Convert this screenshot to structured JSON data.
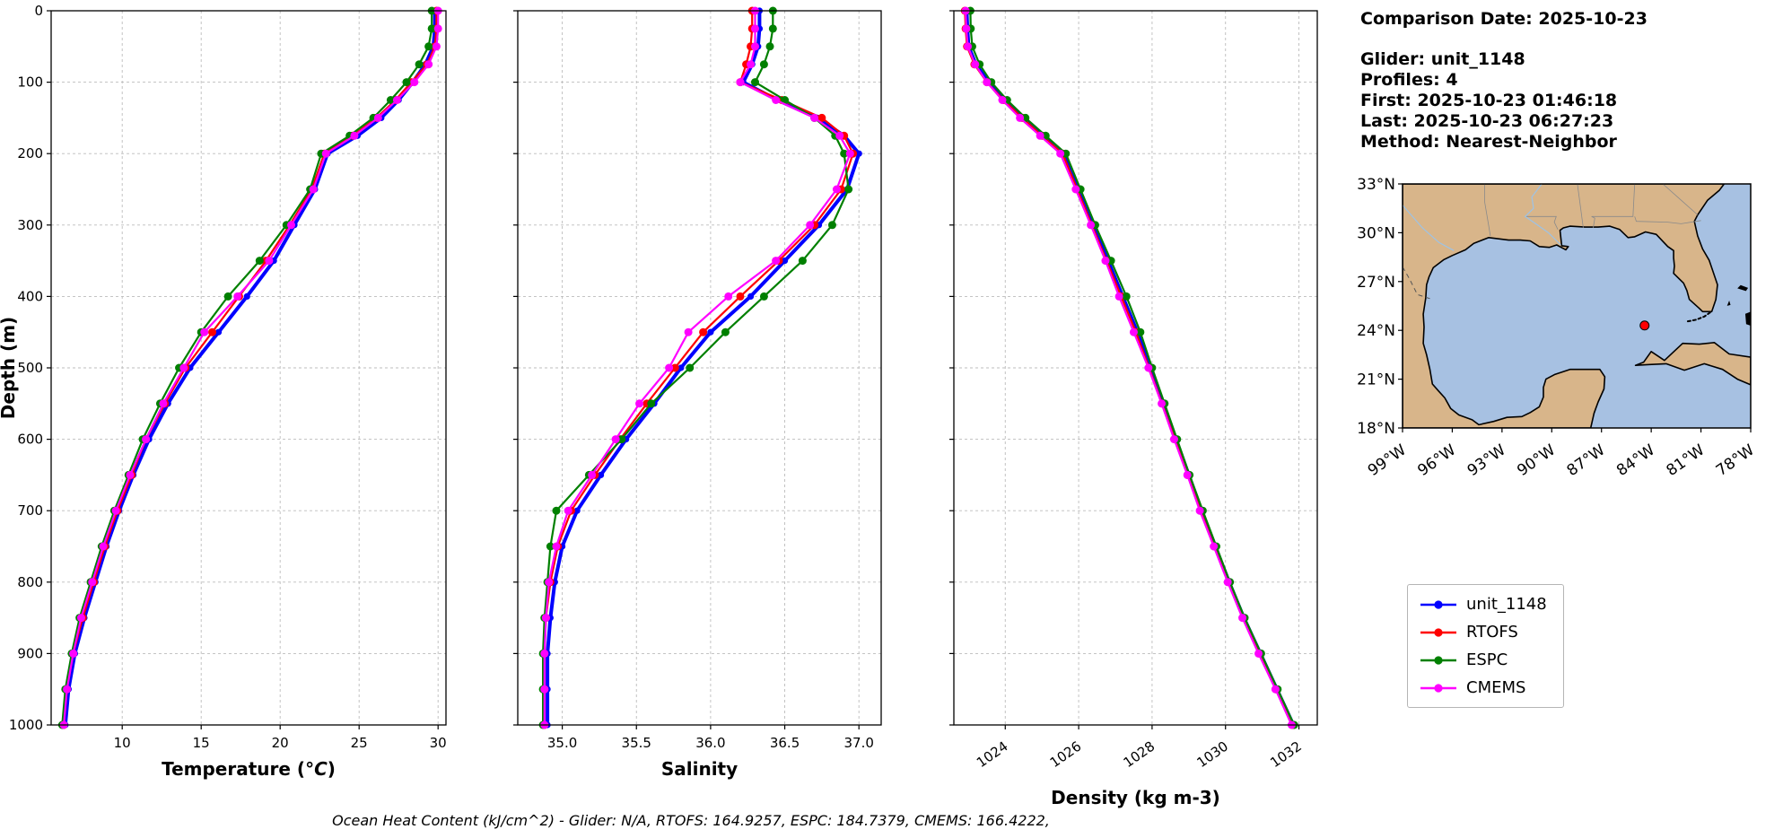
{
  "info_panel": {
    "comparison_date": "Comparison Date: 2025-10-23",
    "glider": "Glider: unit_1148",
    "profiles": "Profiles: 4",
    "first": "First: 2025-10-23 01:46:18",
    "last": "Last: 2025-10-23 06:27:23",
    "method": "Method: Nearest-Neighbor"
  },
  "caption": "Ocean Heat Content (kJ/cm^2) - Glider: N/A,  RTOFS: 164.9257,  ESPC: 184.7379,  CMEMS: 166.4222,",
  "ocean_heat_content": {
    "units": "kJ/cm^2",
    "glider": "N/A",
    "rtofs": 164.9257,
    "espc": 184.7379,
    "cmems": 166.4222
  },
  "legend": {
    "entries": [
      {
        "label": "unit_1148",
        "color": "#0000ff"
      },
      {
        "label": "RTOFS",
        "color": "#ff0000"
      },
      {
        "label": "ESPC",
        "color": "#008000"
      },
      {
        "label": "CMEMS",
        "color": "#ff00ff"
      }
    ]
  },
  "map": {
    "lon_range": [
      -99,
      -78
    ],
    "lat_range": [
      18,
      33
    ],
    "lat_tick_values": [
      33,
      30,
      27,
      24,
      21,
      18
    ],
    "lat_tick_labels": [
      "33°N",
      "30°N",
      "27°N",
      "24°N",
      "21°N",
      "18°N"
    ],
    "lon_tick_values": [
      -99,
      -96,
      -93,
      -90,
      -87,
      -84,
      -81,
      -78
    ],
    "lon_tick_labels": [
      "99°W",
      "96°W",
      "93°W",
      "90°W",
      "87°W",
      "84°W",
      "81°W",
      "78°W"
    ],
    "marker": {
      "lon": -84.4,
      "lat": 24.3,
      "color": "#ff0000"
    },
    "land_color": "#d8b58a",
    "ocean_color": "#a7c1e2"
  },
  "chart_data": [
    {
      "type": "line",
      "xlabel": "Temperature (°C)",
      "ylabel": "Depth (m)",
      "xlim": [
        5.5,
        30.5
      ],
      "ylim": [
        0,
        1000
      ],
      "y_inverted": true,
      "grid": true,
      "xtick_values": [
        10,
        15,
        20,
        25,
        30
      ],
      "xtick_labels": [
        "10",
        "15",
        "20",
        "25",
        "30"
      ],
      "ytick_values": [
        0,
        100,
        200,
        300,
        400,
        500,
        600,
        700,
        800,
        900,
        1000
      ],
      "ytick_labels": [
        "0",
        "100",
        "200",
        "300",
        "400",
        "500",
        "600",
        "700",
        "800",
        "900",
        "1000"
      ],
      "series": [
        {
          "name": "unit_1148",
          "color": "#0000ff",
          "depths": [
            0,
            25,
            50,
            75,
            100,
            125,
            150,
            175,
            200,
            250,
            300,
            350,
            400,
            450,
            500,
            550,
            600,
            650,
            700,
            750,
            800,
            850,
            900,
            950,
            1000
          ],
          "values": [
            29.8,
            29.8,
            29.7,
            29.2,
            28.4,
            27.5,
            26.4,
            24.9,
            23.0,
            22.2,
            20.9,
            19.6,
            17.9,
            16.1,
            14.3,
            12.9,
            11.7,
            10.7,
            9.8,
            9.0,
            8.3,
            7.6,
            7.0,
            6.6,
            6.4
          ]
        },
        {
          "name": "RTOFS",
          "color": "#ff0000",
          "depths": [
            0,
            25,
            50,
            75,
            100,
            125,
            150,
            175,
            200,
            250,
            300,
            350,
            400,
            450,
            500,
            550,
            600,
            650,
            700,
            750,
            800,
            850,
            900,
            950,
            1000
          ],
          "values": [
            29.9,
            29.9,
            29.8,
            29.3,
            28.3,
            27.3,
            26.1,
            24.6,
            22.8,
            22.0,
            20.6,
            19.1,
            17.4,
            15.7,
            14.0,
            12.7,
            11.5,
            10.6,
            9.7,
            8.9,
            8.2,
            7.5,
            6.9,
            6.5,
            6.3
          ]
        },
        {
          "name": "ESPC",
          "color": "#008000",
          "depths": [
            0,
            25,
            50,
            75,
            100,
            125,
            150,
            175,
            200,
            250,
            300,
            350,
            400,
            450,
            500,
            550,
            600,
            650,
            700,
            750,
            800,
            850,
            900,
            950,
            1000
          ],
          "values": [
            29.6,
            29.6,
            29.4,
            28.8,
            28.0,
            27.0,
            25.9,
            24.4,
            22.6,
            21.9,
            20.4,
            18.7,
            16.7,
            15.0,
            13.6,
            12.4,
            11.3,
            10.4,
            9.5,
            8.7,
            8.0,
            7.3,
            6.8,
            6.4,
            6.2
          ]
        },
        {
          "name": "CMEMS",
          "color": "#ff00ff",
          "depths": [
            0,
            25,
            50,
            75,
            100,
            125,
            150,
            175,
            200,
            250,
            300,
            350,
            400,
            450,
            500,
            550,
            600,
            650,
            700,
            750,
            800,
            850,
            900,
            950,
            1000
          ],
          "values": [
            30.0,
            30.0,
            29.9,
            29.4,
            28.5,
            27.4,
            26.2,
            24.7,
            22.9,
            22.1,
            20.7,
            19.3,
            17.3,
            15.2,
            13.9,
            12.6,
            11.5,
            10.5,
            9.6,
            8.8,
            8.1,
            7.4,
            6.9,
            6.5,
            6.3
          ]
        }
      ]
    },
    {
      "type": "line",
      "xlabel": "Salinity",
      "ylabel": "Depth (m)",
      "xlim": [
        34.7,
        37.15
      ],
      "ylim": [
        0,
        1000
      ],
      "y_inverted": true,
      "grid": true,
      "xtick_values": [
        35.0,
        35.5,
        36.0,
        36.5,
        37.0
      ],
      "xtick_labels": [
        "35.0",
        "35.5",
        "36.0",
        "36.5",
        "37.0"
      ],
      "ytick_values": [
        0,
        100,
        200,
        300,
        400,
        500,
        600,
        700,
        800,
        900,
        1000
      ],
      "ytick_labels": [
        "0",
        "100",
        "200",
        "300",
        "400",
        "500",
        "600",
        "700",
        "800",
        "900",
        "1000"
      ],
      "series": [
        {
          "name": "unit_1148",
          "color": "#0000ff",
          "depths": [
            0,
            25,
            50,
            75,
            100,
            125,
            150,
            175,
            200,
            250,
            300,
            350,
            400,
            450,
            500,
            550,
            600,
            650,
            700,
            750,
            800,
            850,
            900,
            950,
            1000
          ],
          "values": [
            36.33,
            36.33,
            36.32,
            36.28,
            36.22,
            36.45,
            36.72,
            36.9,
            37.0,
            36.92,
            36.73,
            36.5,
            36.27,
            36.0,
            35.8,
            35.62,
            35.43,
            35.26,
            35.1,
            35.0,
            34.95,
            34.92,
            34.9,
            34.9,
            34.9
          ]
        },
        {
          "name": "RTOFS",
          "color": "#ff0000",
          "depths": [
            0,
            25,
            50,
            75,
            100,
            125,
            150,
            175,
            200,
            250,
            300,
            350,
            400,
            450,
            500,
            550,
            600,
            650,
            700,
            750,
            800,
            850,
            900,
            950,
            1000
          ],
          "values": [
            36.28,
            36.28,
            36.27,
            36.24,
            36.2,
            36.48,
            36.75,
            36.9,
            36.96,
            36.88,
            36.7,
            36.46,
            36.2,
            35.95,
            35.76,
            35.57,
            35.39,
            35.22,
            35.06,
            34.97,
            34.92,
            34.89,
            34.88,
            34.88,
            34.88
          ]
        },
        {
          "name": "ESPC",
          "color": "#008000",
          "depths": [
            0,
            25,
            50,
            75,
            100,
            125,
            150,
            175,
            200,
            250,
            300,
            350,
            400,
            450,
            500,
            550,
            600,
            650,
            700,
            750,
            800,
            850,
            900,
            950,
            1000
          ],
          "values": [
            36.42,
            36.42,
            36.4,
            36.36,
            36.3,
            36.5,
            36.7,
            36.84,
            36.9,
            36.93,
            36.82,
            36.62,
            36.36,
            36.1,
            35.86,
            35.6,
            35.4,
            35.18,
            34.96,
            34.92,
            34.9,
            34.88,
            34.87,
            34.87,
            34.87
          ]
        },
        {
          "name": "CMEMS",
          "color": "#ff00ff",
          "depths": [
            0,
            25,
            50,
            75,
            100,
            125,
            150,
            175,
            200,
            250,
            300,
            350,
            400,
            450,
            500,
            550,
            600,
            650,
            700,
            750,
            800,
            850,
            900,
            950,
            1000
          ],
          "values": [
            36.3,
            36.3,
            36.3,
            36.27,
            36.2,
            36.44,
            36.7,
            36.87,
            36.94,
            36.85,
            36.67,
            36.44,
            36.12,
            35.85,
            35.72,
            35.52,
            35.36,
            35.2,
            35.04,
            34.96,
            34.91,
            34.89,
            34.88,
            34.88,
            34.88
          ]
        }
      ]
    },
    {
      "type": "line",
      "xlabel": "Density (kg m-3)",
      "ylabel": "Depth (m)",
      "xlim": [
        1022.6,
        1032.5
      ],
      "ylim": [
        0,
        1000
      ],
      "y_inverted": true,
      "grid": true,
      "xtick_rotation": -35,
      "xtick_values": [
        1024,
        1026,
        1028,
        1030,
        1032
      ],
      "xtick_labels": [
        "1024",
        "1026",
        "1028",
        "1030",
        "1032"
      ],
      "ytick_values": [
        0,
        100,
        200,
        300,
        400,
        500,
        600,
        700,
        800,
        900,
        1000
      ],
      "ytick_labels": [
        "0",
        "100",
        "200",
        "300",
        "400",
        "500",
        "600",
        "700",
        "800",
        "900",
        "1000"
      ],
      "series": [
        {
          "name": "unit_1148",
          "color": "#0000ff",
          "depths": [
            0,
            25,
            50,
            75,
            100,
            125,
            150,
            175,
            200,
            250,
            300,
            350,
            400,
            450,
            500,
            550,
            600,
            650,
            700,
            750,
            800,
            850,
            900,
            950,
            1000
          ],
          "values": [
            1022.95,
            1022.97,
            1023.0,
            1023.2,
            1023.55,
            1024.0,
            1024.5,
            1025.05,
            1025.6,
            1026.0,
            1026.4,
            1026.8,
            1027.2,
            1027.6,
            1027.95,
            1028.3,
            1028.65,
            1029.0,
            1029.35,
            1029.72,
            1030.1,
            1030.5,
            1030.95,
            1031.4,
            1031.85
          ]
        },
        {
          "name": "RTOFS",
          "color": "#ff0000",
          "depths": [
            0,
            25,
            50,
            75,
            100,
            125,
            150,
            175,
            200,
            250,
            300,
            350,
            400,
            450,
            500,
            550,
            600,
            650,
            700,
            750,
            800,
            850,
            900,
            950,
            1000
          ],
          "values": [
            1022.9,
            1022.92,
            1022.96,
            1023.16,
            1023.5,
            1023.96,
            1024.46,
            1025.0,
            1025.56,
            1025.96,
            1026.36,
            1026.76,
            1027.16,
            1027.56,
            1027.92,
            1028.27,
            1028.62,
            1028.97,
            1029.32,
            1029.69,
            1030.07,
            1030.47,
            1030.92,
            1031.37,
            1031.82
          ]
        },
        {
          "name": "ESPC",
          "color": "#008000",
          "depths": [
            0,
            25,
            50,
            75,
            100,
            125,
            150,
            175,
            200,
            250,
            300,
            350,
            400,
            450,
            500,
            550,
            600,
            650,
            700,
            750,
            800,
            850,
            900,
            950,
            1000
          ],
          "values": [
            1023.05,
            1023.06,
            1023.1,
            1023.3,
            1023.62,
            1024.05,
            1024.55,
            1025.1,
            1025.65,
            1026.05,
            1026.45,
            1026.88,
            1027.3,
            1027.68,
            1028.0,
            1028.34,
            1028.68,
            1029.02,
            1029.38,
            1029.75,
            1030.12,
            1030.52,
            1030.97,
            1031.42,
            1031.87
          ]
        },
        {
          "name": "CMEMS",
          "color": "#ff00ff",
          "depths": [
            0,
            25,
            50,
            75,
            100,
            125,
            150,
            175,
            200,
            250,
            300,
            350,
            400,
            450,
            500,
            550,
            600,
            650,
            700,
            750,
            800,
            850,
            900,
            950,
            1000
          ],
          "values": [
            1022.92,
            1022.94,
            1022.98,
            1023.18,
            1023.5,
            1023.92,
            1024.4,
            1024.95,
            1025.5,
            1025.92,
            1026.33,
            1026.73,
            1027.1,
            1027.5,
            1027.9,
            1028.26,
            1028.6,
            1028.96,
            1029.3,
            1029.68,
            1030.06,
            1030.46,
            1030.9,
            1031.36,
            1031.8
          ]
        }
      ]
    }
  ]
}
